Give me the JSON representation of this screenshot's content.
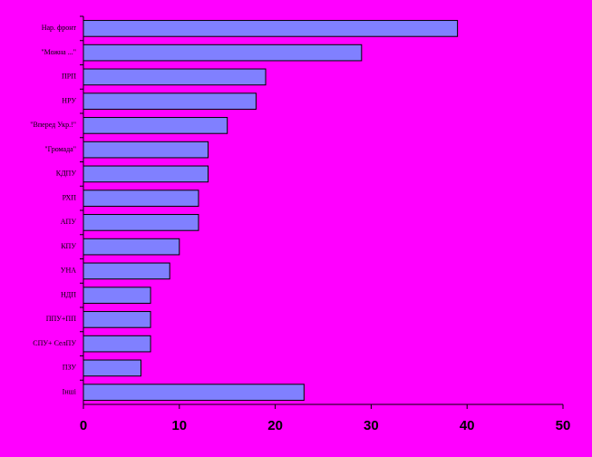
{
  "chart_data": {
    "type": "hbar",
    "categories": [
      "Нар. фронт",
      "\"Можна ...\"",
      "ПРП",
      "НРУ",
      "\"Вперед Укр.!\"",
      "\"Громада\"",
      "КДПУ",
      "РХП",
      "АПУ",
      "КПУ",
      "УНА",
      "НДП",
      "ППУ+ПП",
      "СПУ+ СелПУ",
      "ПЗУ",
      "Інші"
    ],
    "values": [
      39,
      29,
      19,
      18,
      15,
      13,
      13,
      12,
      12,
      10,
      9,
      7,
      7,
      7,
      6,
      23
    ],
    "color": "#8080ff",
    "xlim": [
      0,
      50
    ],
    "xticks": [
      0,
      10,
      20,
      30,
      40,
      50
    ]
  }
}
